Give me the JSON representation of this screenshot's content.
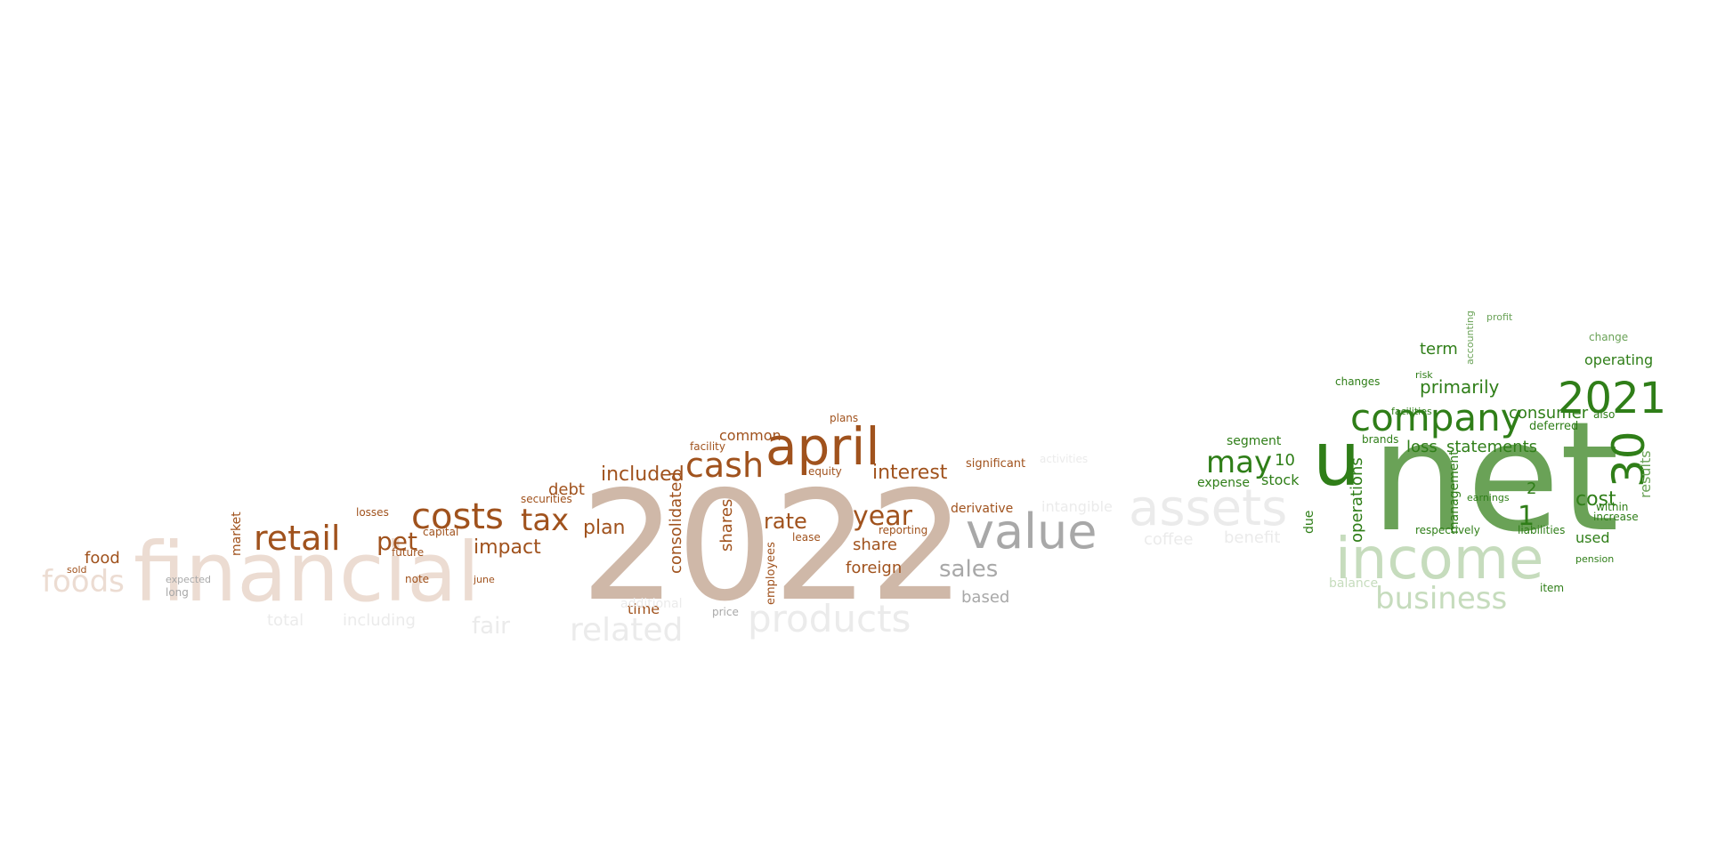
{
  "wordcloud": {
    "words": [
      {
        "text": "2022",
        "color": "#cfb8a8"
      },
      {
        "text": "financial",
        "color": "#ecdcd2"
      },
      {
        "text": "april",
        "color": "#a0521d"
      },
      {
        "text": "costs",
        "color": "#a0521d"
      },
      {
        "text": "cash",
        "color": "#a0521d"
      },
      {
        "text": "tax",
        "color": "#a0521d"
      },
      {
        "text": "retail",
        "color": "#a0521d"
      },
      {
        "text": "pet",
        "color": "#a0521d"
      },
      {
        "text": "foods",
        "color": "#ecdcd2"
      },
      {
        "text": "value",
        "color": "#a8a8a8"
      },
      {
        "text": "assets",
        "color": "#ebebeb"
      },
      {
        "text": "products",
        "color": "#ebebeb"
      },
      {
        "text": "related",
        "color": "#ebebeb"
      },
      {
        "text": "fair",
        "color": "#ebebeb"
      },
      {
        "text": "net",
        "color": "#6aa257"
      },
      {
        "text": "u",
        "color": "#2f7e18"
      },
      {
        "text": "income",
        "color": "#c6dcbd"
      },
      {
        "text": "company",
        "color": "#2f7e18"
      },
      {
        "text": "2021",
        "color": "#2f7e18"
      },
      {
        "text": "30",
        "color": "#2f7e18"
      },
      {
        "text": "business",
        "color": "#c6dcbd"
      },
      {
        "text": "may",
        "color": "#2f7e18"
      },
      {
        "text": "interest",
        "color": "#a0521d"
      },
      {
        "text": "included",
        "color": "#a0521d"
      },
      {
        "text": "year",
        "color": "#a0521d"
      },
      {
        "text": "rate",
        "color": "#a0521d"
      },
      {
        "text": "plan",
        "color": "#a0521d"
      },
      {
        "text": "impact",
        "color": "#a0521d"
      },
      {
        "text": "consolidated",
        "color": "#a0521d"
      },
      {
        "text": "shares",
        "color": "#a0521d"
      },
      {
        "text": "sales",
        "color": "#a8a8a8"
      },
      {
        "text": "based",
        "color": "#a8a8a8"
      },
      {
        "text": "food",
        "color": "#a0521d"
      },
      {
        "text": "debt",
        "color": "#a0521d"
      },
      {
        "text": "time",
        "color": "#a0521d"
      },
      {
        "text": "share",
        "color": "#a0521d"
      },
      {
        "text": "foreign",
        "color": "#a0521d"
      },
      {
        "text": "common",
        "color": "#a0521d"
      },
      {
        "text": "market",
        "color": "#a0521d"
      },
      {
        "text": "primarily",
        "color": "#2f7e18"
      },
      {
        "text": "term",
        "color": "#2f7e18"
      },
      {
        "text": "loss",
        "color": "#2f7e18"
      },
      {
        "text": "statements",
        "color": "#2f7e18"
      },
      {
        "text": "consumer",
        "color": "#2f7e18"
      },
      {
        "text": "cost",
        "color": "#2f7e18"
      },
      {
        "text": "results",
        "color": "#6aa257"
      },
      {
        "text": "operations",
        "color": "#2f7e18"
      },
      {
        "text": "operating",
        "color": "#2f7e18"
      },
      {
        "text": "segment",
        "color": "#2f7e18"
      },
      {
        "text": "stock",
        "color": "#2f7e18"
      },
      {
        "text": "expense",
        "color": "#2f7e18"
      },
      {
        "text": "management",
        "color": "#2f7e18"
      },
      {
        "text": "used",
        "color": "#2f7e18"
      },
      {
        "text": "10",
        "color": "#2f7e18"
      },
      {
        "text": "1",
        "color": "#2f7e18"
      },
      {
        "text": "2",
        "color": "#2f7e18"
      },
      {
        "text": "intangible",
        "color": "#ebebeb"
      },
      {
        "text": "total",
        "color": "#ebebeb"
      },
      {
        "text": "including",
        "color": "#ebebeb"
      },
      {
        "text": "coffee",
        "color": "#ebebeb"
      },
      {
        "text": "benefit",
        "color": "#ebebeb"
      },
      {
        "text": "activities",
        "color": "#ebebeb"
      },
      {
        "text": "derivative",
        "color": "#a0521d"
      },
      {
        "text": "significant",
        "color": "#a0521d"
      },
      {
        "text": "reporting",
        "color": "#a0521d"
      },
      {
        "text": "employees",
        "color": "#a0521d"
      },
      {
        "text": "securities",
        "color": "#a0521d"
      },
      {
        "text": "capital",
        "color": "#a0521d"
      },
      {
        "text": "losses",
        "color": "#a0521d"
      },
      {
        "text": "future",
        "color": "#a0521d"
      },
      {
        "text": "lease",
        "color": "#a0521d"
      },
      {
        "text": "equity",
        "color": "#a0521d"
      },
      {
        "text": "facility",
        "color": "#a0521d"
      },
      {
        "text": "plans",
        "color": "#a0521d"
      },
      {
        "text": "note",
        "color": "#a0521d"
      },
      {
        "text": "june",
        "color": "#a0521d"
      },
      {
        "text": "sold",
        "color": "#a0521d"
      },
      {
        "text": "long",
        "color": "#a8a8a8"
      },
      {
        "text": "expected",
        "color": "#a8a8a8"
      },
      {
        "text": "price",
        "color": "#a8a8a8"
      },
      {
        "text": "additional",
        "color": "#ebebeb"
      },
      {
        "text": "deferred",
        "color": "#2f7e18"
      },
      {
        "text": "changes",
        "color": "#2f7e18"
      },
      {
        "text": "brands",
        "color": "#2f7e18"
      },
      {
        "text": "respectively",
        "color": "#2f7e18"
      },
      {
        "text": "liabilities",
        "color": "#2f7e18"
      },
      {
        "text": "increase",
        "color": "#2f7e18"
      },
      {
        "text": "within",
        "color": "#2f7e18"
      },
      {
        "text": "also",
        "color": "#2f7e18"
      },
      {
        "text": "change",
        "color": "#6aa257"
      },
      {
        "text": "accounting",
        "color": "#6aa257"
      },
      {
        "text": "profit",
        "color": "#6aa257"
      },
      {
        "text": "risk",
        "color": "#2f7e18"
      },
      {
        "text": "facilities",
        "color": "#2f7e18"
      },
      {
        "text": "earnings",
        "color": "#2f7e18"
      },
      {
        "text": "pension",
        "color": "#2f7e18"
      },
      {
        "text": "item",
        "color": "#2f7e18"
      },
      {
        "text": "due",
        "color": "#2f7e18"
      },
      {
        "text": "balance",
        "color": "#c6dcbd"
      }
    ]
  }
}
